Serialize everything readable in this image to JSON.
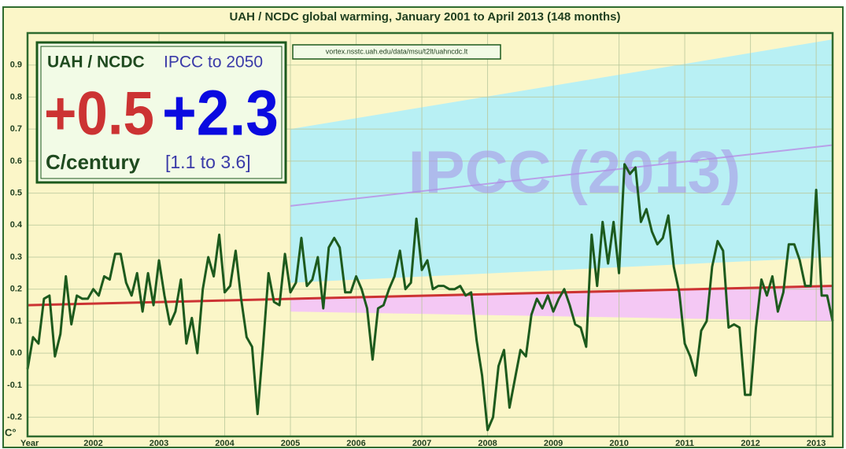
{
  "chart_data": {
    "type": "line",
    "title": "UAH / NCDC global warming, January 2001 to April 2013 (148 months)",
    "ylabel": "C°",
    "xlabel": "Year",
    "color": "#1d5a1d",
    "x": [
      0,
      1,
      2,
      3,
      4,
      5,
      6,
      7,
      8,
      9,
      10,
      11,
      12,
      13,
      14,
      15,
      16,
      17,
      18,
      19,
      20,
      21,
      22,
      23,
      24,
      25,
      26,
      27,
      28,
      29,
      30,
      31,
      32,
      33,
      34,
      35,
      36,
      37,
      38,
      39,
      40,
      41,
      42,
      43,
      44,
      45,
      46,
      47,
      48,
      49,
      50,
      51,
      52,
      53,
      54,
      55,
      56,
      57,
      58,
      59,
      60,
      61,
      62,
      63,
      64,
      65,
      66,
      67,
      68,
      69,
      70,
      71,
      72,
      73,
      74,
      75,
      76,
      77,
      78,
      79,
      80,
      81,
      82,
      83,
      84,
      85,
      86,
      87,
      88,
      89,
      90,
      91,
      92,
      93,
      94,
      95,
      96,
      97,
      98,
      99,
      100,
      101,
      102,
      103,
      104,
      105,
      106,
      107,
      108,
      109,
      110,
      111,
      112,
      113,
      114,
      115,
      116,
      117,
      118,
      119,
      120,
      121,
      122,
      123,
      124,
      125,
      126,
      127,
      128,
      129,
      130,
      131,
      132,
      133,
      134,
      135,
      136,
      137,
      138,
      139,
      140,
      141,
      142,
      143,
      144,
      145,
      146,
      147
    ],
    "values": [
      -0.05,
      0.05,
      0.03,
      0.17,
      0.18,
      -0.01,
      0.06,
      0.24,
      0.09,
      0.18,
      0.17,
      0.17,
      0.2,
      0.18,
      0.24,
      0.23,
      0.31,
      0.31,
      0.22,
      0.18,
      0.25,
      0.13,
      0.25,
      0.15,
      0.29,
      0.18,
      0.09,
      0.13,
      0.23,
      0.03,
      0.11,
      0.0,
      0.2,
      0.3,
      0.24,
      0.37,
      0.19,
      0.21,
      0.32,
      0.17,
      0.05,
      0.02,
      -0.19,
      0.02,
      0.25,
      0.16,
      0.15,
      0.31,
      0.19,
      0.22,
      0.36,
      0.21,
      0.23,
      0.3,
      0.14,
      0.33,
      0.36,
      0.33,
      0.19,
      0.19,
      0.24,
      0.2,
      0.14,
      -0.02,
      0.14,
      0.15,
      0.2,
      0.24,
      0.32,
      0.2,
      0.22,
      0.42,
      0.26,
      0.29,
      0.2,
      0.21,
      0.21,
      0.2,
      0.2,
      0.21,
      0.18,
      0.19,
      0.04,
      -0.07,
      -0.24,
      -0.2,
      -0.04,
      0.01,
      -0.17,
      -0.08,
      0.01,
      -0.01,
      0.12,
      0.17,
      0.14,
      0.18,
      0.13,
      0.17,
      0.2,
      0.15,
      0.09,
      0.08,
      0.02,
      0.37,
      0.21,
      0.41,
      0.28,
      0.41,
      0.25,
      0.59,
      0.56,
      0.58,
      0.41,
      0.45,
      0.38,
      0.34,
      0.36,
      0.43,
      0.27,
      0.19,
      0.03,
      -0.01,
      -0.07,
      0.07,
      0.1,
      0.27,
      0.35,
      0.32,
      0.08,
      0.09,
      0.08,
      -0.13,
      -0.13,
      0.08,
      0.23,
      0.18,
      0.24,
      0.13,
      0.19,
      0.34,
      0.34,
      0.29,
      0.21,
      0.21,
      0.51,
      0.18,
      0.18,
      0.1
    ],
    "xlim": [
      0,
      147
    ],
    "ylim": [
      -0.26,
      1.0
    ],
    "yticks": [
      -0.2,
      -0.1,
      {
        "value": 0,
        "label": "0.0"
      },
      0.1,
      0.2,
      0.3,
      0.4,
      0.5,
      0.6,
      0.7,
      0.8,
      0.9
    ],
    "xticks": [
      {
        "value": 12,
        "label": "2002"
      },
      {
        "value": 24,
        "label": "2003"
      },
      {
        "value": 36,
        "label": "2004"
      },
      {
        "value": 48,
        "label": "2005"
      },
      {
        "value": 60,
        "label": "2006"
      },
      {
        "value": 72,
        "label": "2007"
      },
      {
        "value": 84,
        "label": "2008"
      },
      {
        "value": 96,
        "label": "2009"
      },
      {
        "value": 108,
        "label": "2010"
      },
      {
        "value": 120,
        "label": "2011"
      },
      {
        "value": 132,
        "label": "2012"
      },
      {
        "value": 144,
        "label": "2013"
      }
    ],
    "grid": true,
    "trend": {
      "x": [
        0,
        147
      ],
      "values": [
        0.15,
        0.21
      ],
      "color": "#cc3333"
    },
    "ipcc_band": {
      "x": [
        48,
        147
      ],
      "upper": [
        0.7,
        0.98
      ],
      "lower": [
        0.22,
        0.3
      ],
      "center": [
        0.46,
        0.65
      ],
      "color": "#b8f0f4"
    },
    "low_band": {
      "x": [
        48,
        147
      ],
      "lower": [
        0.13,
        0.1
      ],
      "color": "#f4c8f4"
    },
    "annotations": {
      "source_name": "UAH / NCDC",
      "source_rate": "+0.5",
      "unit": "C/century",
      "ipcc_name": "IPCC to 2050",
      "ipcc_rate": "+2.3",
      "ipcc_range": "[1.1 to 3.6]",
      "url": "vortex.nsstc.uah.edu/data/msu/t2lt/uahncdc.lt",
      "watermark": "IPCC (2013)"
    }
  }
}
